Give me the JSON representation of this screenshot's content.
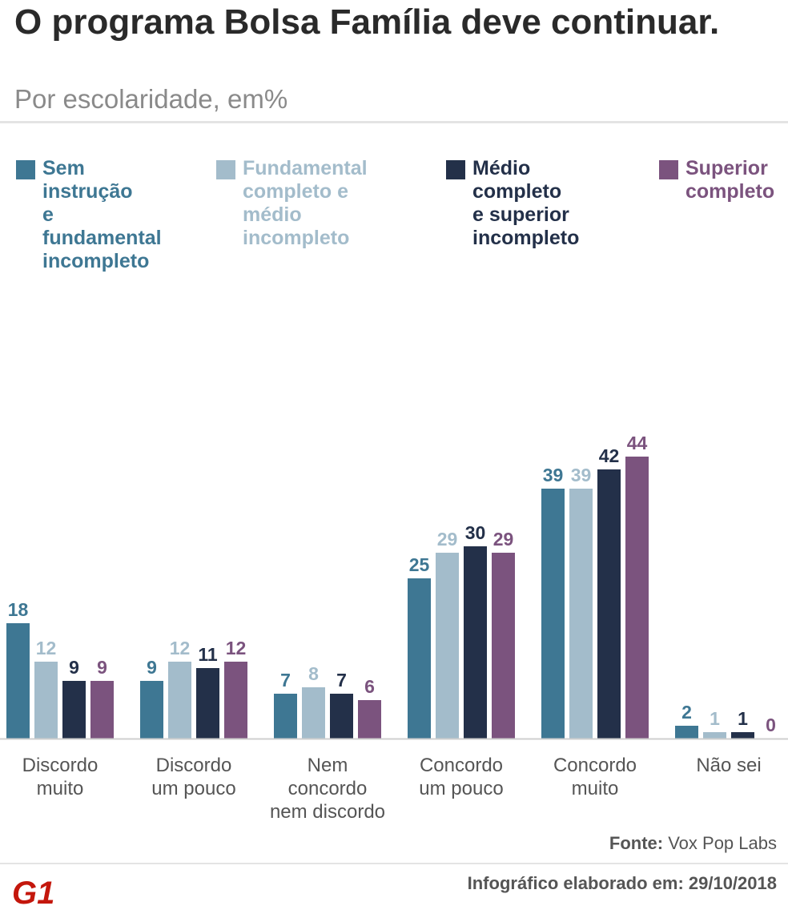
{
  "header": {
    "title": "O programa Bolsa Família deve continuar.",
    "subtitle": "Por escolaridade, em%"
  },
  "legend": [
    {
      "label": "Sem instrução\ne fundamental\nincompleto",
      "color": "#3e7793"
    },
    {
      "label": "Fundamental\ncompleto e médio\nincompleto",
      "color": "#a3bccb"
    },
    {
      "label": "Médio completo\ne superior\nincompleto",
      "color": "#233049"
    },
    {
      "label": "Superior\ncompleto",
      "color": "#7b537e"
    }
  ],
  "chart_data": {
    "type": "bar",
    "title": "O programa Bolsa Família deve continuar.",
    "subtitle": "Por escolaridade, em%",
    "categories": [
      "Discordo\nmuito",
      "Discordo\num pouco",
      "Nem\nconcordo\nnem discordo",
      "Concordo\num pouco",
      "Concordo\nmuito",
      "Não sei"
    ],
    "series": [
      {
        "name": "Sem instrução e fundamental incompleto",
        "color": "#3e7793",
        "values": [
          18,
          9,
          7,
          25,
          39,
          2
        ]
      },
      {
        "name": "Fundamental completo e médio incompleto",
        "color": "#a3bccb",
        "values": [
          12,
          12,
          8,
          29,
          39,
          1
        ]
      },
      {
        "name": "Médio completo e superior incompleto",
        "color": "#233049",
        "values": [
          9,
          11,
          7,
          30,
          42,
          1
        ]
      },
      {
        "name": "Superior completo",
        "color": "#7b537e",
        "values": [
          9,
          12,
          6,
          29,
          44,
          0
        ]
      }
    ],
    "xlabel": "",
    "ylabel": "",
    "ylim": [
      0,
      44
    ],
    "grid": false,
    "legend_position": "top"
  },
  "footer": {
    "source_label": "Fonte:",
    "source_value": "Vox Pop Labs",
    "logo_text": "G1",
    "note": "Infográfico elaborado em: 29/10/2018"
  }
}
